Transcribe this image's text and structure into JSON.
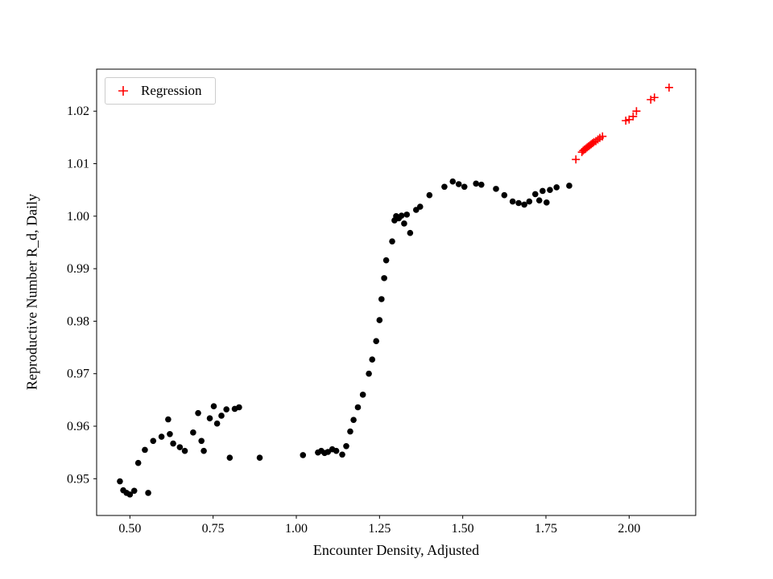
{
  "chart_data": {
    "type": "scatter",
    "title": "",
    "xlabel": "Encounter Density, Adjusted",
    "ylabel": "Reproductive Number R_d, Daily",
    "xlim": [
      0.4,
      2.2
    ],
    "ylim": [
      0.943,
      1.028
    ],
    "grid": false,
    "legend_position": "upper left",
    "xticks": [
      0.5,
      0.75,
      1.0,
      1.25,
      1.5,
      1.75,
      2.0
    ],
    "xtick_labels": [
      "0.50",
      "0.75",
      "1.00",
      "1.25",
      "1.50",
      "1.75",
      "2.00"
    ],
    "yticks": [
      0.95,
      0.96,
      0.97,
      0.98,
      0.99,
      1.0,
      1.01,
      1.02
    ],
    "ytick_labels": [
      "0.95",
      "0.96",
      "0.97",
      "0.98",
      "0.99",
      "1.00",
      "1.01",
      "1.02"
    ],
    "series": [
      {
        "name": "observations",
        "marker": "circle",
        "color": "#000000",
        "points": [
          [
            0.47,
            0.9495
          ],
          [
            0.48,
            0.9478
          ],
          [
            0.49,
            0.9473
          ],
          [
            0.5,
            0.947
          ],
          [
            0.513,
            0.9477
          ],
          [
            0.525,
            0.953
          ],
          [
            0.555,
            0.9473
          ],
          [
            0.545,
            0.9555
          ],
          [
            0.57,
            0.9572
          ],
          [
            0.595,
            0.958
          ],
          [
            0.615,
            0.9613
          ],
          [
            0.62,
            0.9585
          ],
          [
            0.63,
            0.9567
          ],
          [
            0.65,
            0.956
          ],
          [
            0.665,
            0.9553
          ],
          [
            0.69,
            0.9588
          ],
          [
            0.705,
            0.9625
          ],
          [
            0.715,
            0.9572
          ],
          [
            0.722,
            0.9553
          ],
          [
            0.74,
            0.9615
          ],
          [
            0.752,
            0.9638
          ],
          [
            0.762,
            0.9605
          ],
          [
            0.775,
            0.962
          ],
          [
            0.79,
            0.9632
          ],
          [
            0.8,
            0.954
          ],
          [
            0.815,
            0.9633
          ],
          [
            0.828,
            0.9636
          ],
          [
            0.89,
            0.954
          ],
          [
            1.02,
            0.9545
          ],
          [
            1.065,
            0.955
          ],
          [
            1.075,
            0.9553
          ],
          [
            1.085,
            0.9549
          ],
          [
            1.095,
            0.9551
          ],
          [
            1.108,
            0.9556
          ],
          [
            1.12,
            0.9553
          ],
          [
            1.138,
            0.9546
          ],
          [
            1.15,
            0.9562
          ],
          [
            1.162,
            0.959
          ],
          [
            1.172,
            0.9612
          ],
          [
            1.185,
            0.9636
          ],
          [
            1.2,
            0.966
          ],
          [
            1.218,
            0.97
          ],
          [
            1.228,
            0.9727
          ],
          [
            1.24,
            0.9762
          ],
          [
            1.25,
            0.9802
          ],
          [
            1.256,
            0.9842
          ],
          [
            1.264,
            0.9882
          ],
          [
            1.27,
            0.9916
          ],
          [
            1.288,
            0.9952
          ],
          [
            1.295,
            0.9992
          ],
          [
            1.3,
            1.0
          ],
          [
            1.308,
            0.9996
          ],
          [
            1.316,
            1.0001
          ],
          [
            1.324,
            0.9986
          ],
          [
            1.332,
            1.0003
          ],
          [
            1.342,
            0.9968
          ],
          [
            1.36,
            1.0012
          ],
          [
            1.372,
            1.0018
          ],
          [
            1.4,
            1.004
          ],
          [
            1.445,
            1.0056
          ],
          [
            1.47,
            1.0066
          ],
          [
            1.488,
            1.0061
          ],
          [
            1.505,
            1.0056
          ],
          [
            1.54,
            1.0062
          ],
          [
            1.556,
            1.006
          ],
          [
            1.6,
            1.0052
          ],
          [
            1.625,
            1.004
          ],
          [
            1.65,
            1.0028
          ],
          [
            1.668,
            1.0025
          ],
          [
            1.685,
            1.0022
          ],
          [
            1.7,
            1.0028
          ],
          [
            1.718,
            1.0042
          ],
          [
            1.73,
            1.003
          ],
          [
            1.74,
            1.0048
          ],
          [
            1.752,
            1.0026
          ],
          [
            1.762,
            1.005
          ],
          [
            1.782,
            1.0055
          ],
          [
            1.82,
            1.0058
          ]
        ]
      },
      {
        "name": "Regression",
        "marker": "plus",
        "color": "#ff0000",
        "points": [
          [
            1.84,
            1.0108
          ],
          [
            1.858,
            1.0122
          ],
          [
            1.862,
            1.0125
          ],
          [
            1.866,
            1.0127
          ],
          [
            1.87,
            1.0129
          ],
          [
            1.874,
            1.0131
          ],
          [
            1.878,
            1.0133
          ],
          [
            1.882,
            1.0135
          ],
          [
            1.886,
            1.0137
          ],
          [
            1.89,
            1.0139
          ],
          [
            1.894,
            1.0141
          ],
          [
            1.9,
            1.0143
          ],
          [
            1.906,
            1.0146
          ],
          [
            1.912,
            1.0149
          ],
          [
            1.92,
            1.0152
          ],
          [
            1.99,
            1.0182
          ],
          [
            2.0,
            1.0184
          ],
          [
            2.012,
            1.019
          ],
          [
            2.022,
            1.02
          ],
          [
            2.065,
            1.0222
          ],
          [
            2.076,
            1.0226
          ],
          [
            2.12,
            1.0245
          ]
        ]
      }
    ]
  }
}
